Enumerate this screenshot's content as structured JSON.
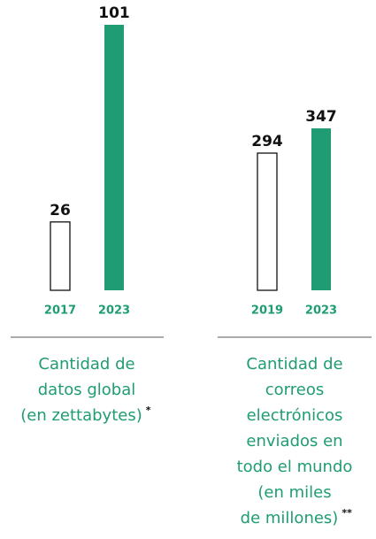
{
  "chart_data": [
    {
      "type": "bar",
      "categories": [
        "2017",
        "2023"
      ],
      "values": [
        26,
        101
      ],
      "colors": [
        "#ffffff",
        "#1f9c73"
      ],
      "ylim": [
        0,
        101
      ],
      "caption": [
        "Cantidad de",
        "datos global",
        "(en zettabytes)"
      ],
      "footnote_marker": "*"
    },
    {
      "type": "bar",
      "categories": [
        "2019",
        "2023"
      ],
      "values": [
        294,
        347
      ],
      "colors": [
        "#ffffff",
        "#1f9c73"
      ],
      "ylim": [
        0,
        569
      ],
      "caption": [
        "Cantidad de",
        "correos",
        "electrónicos",
        "enviados en",
        "todo el mundo",
        "(en miles",
        "de millones)"
      ],
      "footnote_marker": "**"
    }
  ]
}
